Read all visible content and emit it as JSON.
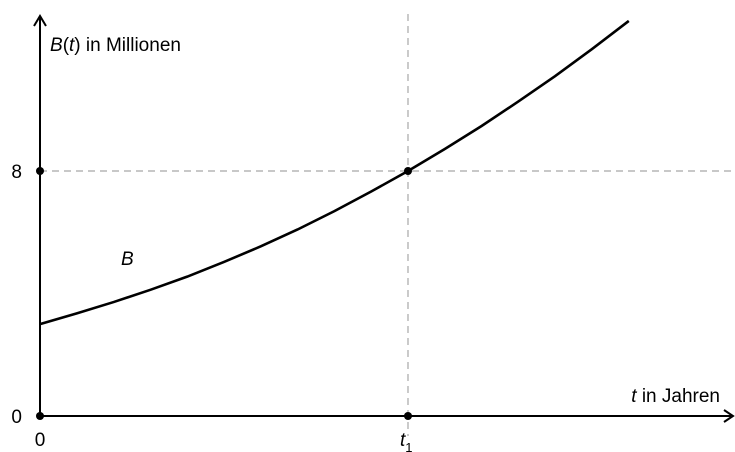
{
  "chart_data": {
    "type": "line",
    "y_axis_label": {
      "a": "B",
      "b": "(",
      "c": "t",
      "d": ") in Millionen"
    },
    "x_axis_label": {
      "a": "t",
      "b": " in Jahren"
    },
    "curve_label": "B",
    "x_ticks": [
      {
        "label": "0",
        "x": 0
      },
      {
        "label": "t",
        "sub": "1",
        "x": 1
      }
    ],
    "y_ticks": [
      {
        "label": "0",
        "y": 0
      },
      {
        "label": "8",
        "y": 8
      }
    ],
    "xlim": [
      0,
      1.9
    ],
    "ylim": [
      0,
      12.1
    ],
    "series": [
      {
        "points": [
          [
            0,
            3.0
          ],
          [
            0.1,
            3.35
          ],
          [
            0.2,
            3.72
          ],
          [
            0.3,
            4.12
          ],
          [
            0.4,
            4.55
          ],
          [
            0.5,
            5.03
          ],
          [
            0.6,
            5.54
          ],
          [
            0.7,
            6.09
          ],
          [
            0.8,
            6.69
          ],
          [
            0.9,
            7.33
          ],
          [
            1.0,
            8.0
          ],
          [
            1.1,
            8.72
          ],
          [
            1.2,
            9.47
          ],
          [
            1.3,
            10.27
          ],
          [
            1.4,
            11.1
          ],
          [
            1.5,
            11.98
          ],
          [
            1.6,
            12.9
          ]
        ]
      }
    ],
    "reference_lines": [
      {
        "orientation": "vertical",
        "value": 1
      },
      {
        "orientation": "horizontal",
        "value": 8
      }
    ],
    "marked_points": [
      {
        "x": 1,
        "y": 8
      },
      {
        "x": 1,
        "y": 0
      },
      {
        "x": 0,
        "y": 8
      },
      {
        "x": 0,
        "y": 0
      }
    ]
  }
}
